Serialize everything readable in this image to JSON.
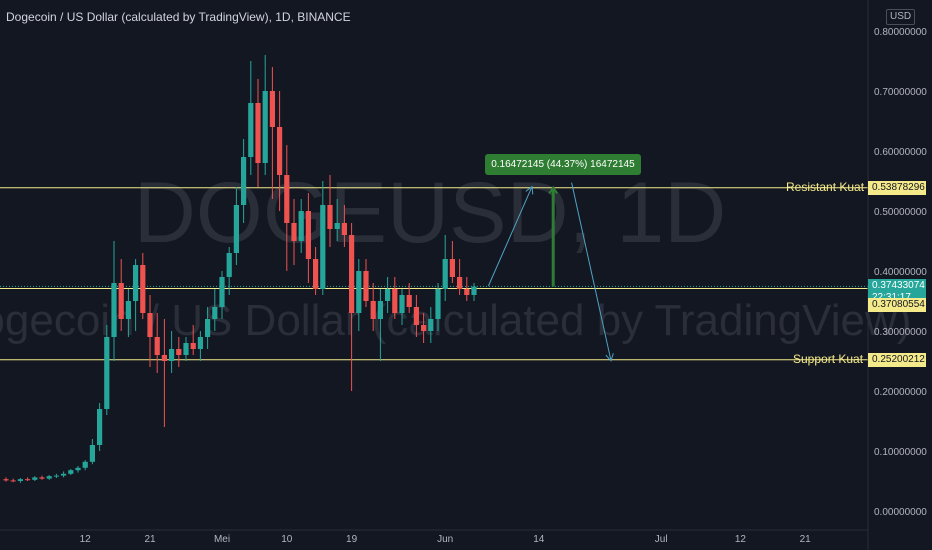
{
  "header": {
    "title": "Dogecoin / US Dollar (calculated by TradingView), 1D, BINANCE",
    "currency": "USD"
  },
  "watermark": {
    "symbol": "DOGEUSD, 1D",
    "description": "Dogecoin / US Dollar (calculated by TradingView)"
  },
  "colors": {
    "background": "#131722",
    "up": "#26a69a",
    "down": "#ef5350",
    "level_line": "#f5ea8a",
    "arrow": "#4fa3c7",
    "measure": "#2e7d32",
    "current_price": "#26a69a"
  },
  "chart_data": {
    "type": "candlestick",
    "title": "Dogecoin / US Dollar (calculated by TradingView), 1D, BINANCE",
    "ylim": [
      0,
      0.82
    ],
    "y_ticks": [
      "0.80000000",
      "0.70000000",
      "0.60000000",
      "0.50000000",
      "0.40000000",
      "0.30000000",
      "0.20000000",
      "0.10000000",
      "0.00000000"
    ],
    "y_tick_values": [
      0.8,
      0.7,
      0.6,
      0.5,
      0.4,
      0.3,
      0.2,
      0.1,
      0.0
    ],
    "x_ticks": [
      "12",
      "21",
      "Mei",
      "10",
      "19",
      "Jun",
      "14",
      "Jul",
      "12",
      "21"
    ],
    "x_tick_days": [
      11,
      20,
      30,
      39,
      48,
      61,
      74,
      91,
      102,
      111
    ],
    "grid": false,
    "candles": [
      [
        0,
        0.053,
        0.056,
        0.049,
        0.051
      ],
      [
        1,
        0.051,
        0.054,
        0.048,
        0.05
      ],
      [
        2,
        0.05,
        0.055,
        0.047,
        0.053
      ],
      [
        3,
        0.053,
        0.056,
        0.05,
        0.052
      ],
      [
        4,
        0.052,
        0.058,
        0.05,
        0.056
      ],
      [
        5,
        0.056,
        0.059,
        0.052,
        0.054
      ],
      [
        6,
        0.054,
        0.06,
        0.052,
        0.058
      ],
      [
        7,
        0.058,
        0.062,
        0.055,
        0.059
      ],
      [
        8,
        0.059,
        0.066,
        0.056,
        0.062
      ],
      [
        9,
        0.062,
        0.07,
        0.06,
        0.068
      ],
      [
        10,
        0.068,
        0.075,
        0.064,
        0.072
      ],
      [
        11,
        0.072,
        0.085,
        0.068,
        0.082
      ],
      [
        12,
        0.082,
        0.12,
        0.078,
        0.11
      ],
      [
        13,
        0.11,
        0.18,
        0.1,
        0.17
      ],
      [
        14,
        0.17,
        0.31,
        0.16,
        0.29
      ],
      [
        15,
        0.29,
        0.45,
        0.25,
        0.38
      ],
      [
        16,
        0.38,
        0.42,
        0.3,
        0.32
      ],
      [
        17,
        0.32,
        0.37,
        0.29,
        0.35
      ],
      [
        18,
        0.35,
        0.42,
        0.3,
        0.41
      ],
      [
        19,
        0.41,
        0.43,
        0.32,
        0.33
      ],
      [
        20,
        0.33,
        0.36,
        0.24,
        0.29
      ],
      [
        21,
        0.29,
        0.33,
        0.23,
        0.26
      ],
      [
        22,
        0.26,
        0.32,
        0.14,
        0.25
      ],
      [
        23,
        0.25,
        0.3,
        0.23,
        0.27
      ],
      [
        24,
        0.27,
        0.29,
        0.24,
        0.26
      ],
      [
        25,
        0.26,
        0.29,
        0.25,
        0.28
      ],
      [
        26,
        0.28,
        0.31,
        0.26,
        0.27
      ],
      [
        27,
        0.27,
        0.3,
        0.25,
        0.29
      ],
      [
        28,
        0.29,
        0.34,
        0.27,
        0.32
      ],
      [
        29,
        0.32,
        0.37,
        0.3,
        0.34
      ],
      [
        30,
        0.34,
        0.4,
        0.32,
        0.39
      ],
      [
        31,
        0.39,
        0.44,
        0.36,
        0.43
      ],
      [
        32,
        0.43,
        0.54,
        0.41,
        0.51
      ],
      [
        33,
        0.51,
        0.62,
        0.48,
        0.59
      ],
      [
        34,
        0.59,
        0.75,
        0.56,
        0.68
      ],
      [
        35,
        0.68,
        0.72,
        0.54,
        0.58
      ],
      [
        36,
        0.58,
        0.76,
        0.56,
        0.7
      ],
      [
        37,
        0.7,
        0.74,
        0.52,
        0.64
      ],
      [
        38,
        0.64,
        0.7,
        0.5,
        0.56
      ],
      [
        39,
        0.56,
        0.61,
        0.4,
        0.48
      ],
      [
        40,
        0.48,
        0.52,
        0.41,
        0.45
      ],
      [
        41,
        0.45,
        0.52,
        0.43,
        0.5
      ],
      [
        42,
        0.5,
        0.53,
        0.38,
        0.42
      ],
      [
        43,
        0.42,
        0.44,
        0.36,
        0.37
      ],
      [
        44,
        0.37,
        0.55,
        0.36,
        0.51
      ],
      [
        45,
        0.51,
        0.56,
        0.44,
        0.47
      ],
      [
        46,
        0.47,
        0.52,
        0.45,
        0.48
      ],
      [
        47,
        0.48,
        0.51,
        0.44,
        0.46
      ],
      [
        48,
        0.46,
        0.48,
        0.2,
        0.33
      ],
      [
        49,
        0.33,
        0.42,
        0.3,
        0.4
      ],
      [
        50,
        0.4,
        0.42,
        0.34,
        0.35
      ],
      [
        51,
        0.35,
        0.38,
        0.3,
        0.32
      ],
      [
        52,
        0.32,
        0.37,
        0.25,
        0.35
      ],
      [
        53,
        0.35,
        0.39,
        0.33,
        0.37
      ],
      [
        54,
        0.37,
        0.39,
        0.32,
        0.33
      ],
      [
        55,
        0.33,
        0.37,
        0.31,
        0.36
      ],
      [
        56,
        0.36,
        0.38,
        0.33,
        0.34
      ],
      [
        57,
        0.34,
        0.36,
        0.29,
        0.31
      ],
      [
        58,
        0.31,
        0.33,
        0.28,
        0.3
      ],
      [
        59,
        0.3,
        0.34,
        0.28,
        0.32
      ],
      [
        60,
        0.32,
        0.38,
        0.3,
        0.37
      ],
      [
        61,
        0.37,
        0.46,
        0.35,
        0.42
      ],
      [
        62,
        0.42,
        0.45,
        0.38,
        0.39
      ],
      [
        63,
        0.39,
        0.42,
        0.36,
        0.37
      ],
      [
        64,
        0.37,
        0.39,
        0.35,
        0.36
      ],
      [
        65,
        0.36,
        0.38,
        0.35,
        0.374
      ]
    ],
    "levels": [
      {
        "label": "Resistant Kuat",
        "value": 0.53878296,
        "value_text": "0.53878296"
      },
      {
        "label": "Support Kuat",
        "value": 0.25200212,
        "value_text": "0.25200212"
      }
    ],
    "horizontal_line": 0.3708,
    "current_price": {
      "value": 0.37433074,
      "text": "0.37433074",
      "countdown": "22:31:17"
    },
    "prev_price": {
      "value": 0.37080554,
      "text": "0.37080554"
    },
    "measure": {
      "text": "0.16472145 (44.37%) 16472145",
      "from_value": 0.374,
      "to_value": 0.539,
      "x_day": 76
    },
    "projection": [
      {
        "day": 67,
        "value": 0.375
      },
      {
        "day": 73,
        "value": 0.539
      },
      {
        "day": 84,
        "value": 0.252
      }
    ]
  }
}
